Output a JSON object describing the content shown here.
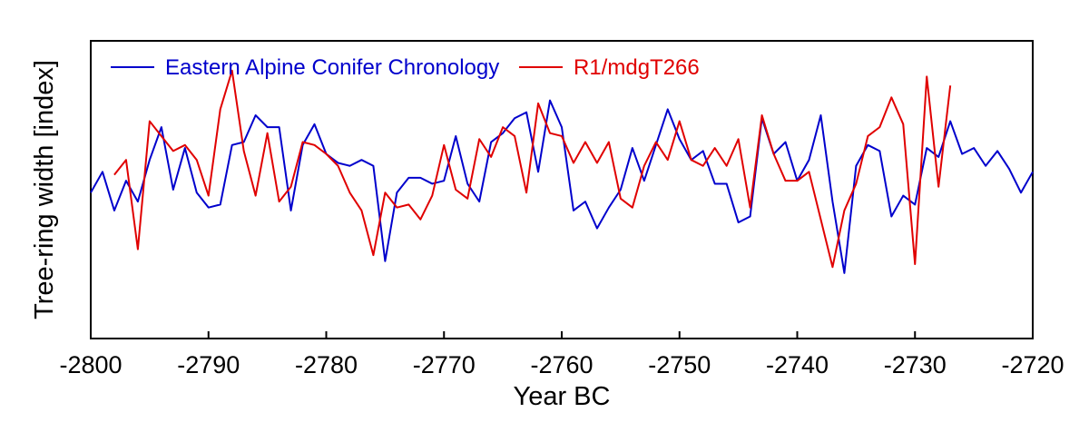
{
  "chart_data": {
    "type": "line",
    "xlabel": "Year BC",
    "ylabel": "Tree-ring width [index]",
    "xlim": [
      -2800,
      -2720
    ],
    "ylim": [
      0,
      10
    ],
    "xticks": [
      -2800,
      -2790,
      -2780,
      -2770,
      -2760,
      -2750,
      -2740,
      -2730,
      -2720
    ],
    "yticks": [],
    "grid": false,
    "legend": "top-left",
    "series": [
      {
        "name": "Eastern Alpine Conifer Chronology",
        "color": "#0000cc",
        "x": [
          -2800,
          -2799,
          -2798,
          -2797,
          -2796,
          -2795,
          -2794,
          -2793,
          -2792,
          -2791,
          -2790,
          -2789,
          -2788,
          -2787,
          -2786,
          -2785,
          -2784,
          -2783,
          -2782,
          -2781,
          -2780,
          -2779,
          -2778,
          -2777,
          -2776,
          -2775,
          -2774,
          -2773,
          -2772,
          -2771,
          -2770,
          -2769,
          -2768,
          -2767,
          -2766,
          -2765,
          -2764,
          -2763,
          -2762,
          -2761,
          -2760,
          -2759,
          -2758,
          -2757,
          -2756,
          -2755,
          -2754,
          -2753,
          -2752,
          -2751,
          -2750,
          -2749,
          -2748,
          -2747,
          -2746,
          -2745,
          -2744,
          -2743,
          -2742,
          -2741,
          -2740,
          -2739,
          -2738,
          -2737,
          -2736,
          -2735,
          -2734,
          -2733,
          -2732,
          -2731,
          -2730,
          -2729,
          -2728,
          -2727,
          -2726,
          -2725,
          -2724,
          -2723,
          -2722,
          -2721,
          -2720
        ],
        "values": [
          4.9,
          5.6,
          4.3,
          5.3,
          4.6,
          6.0,
          7.1,
          5.0,
          6.4,
          4.9,
          4.4,
          4.5,
          6.5,
          6.6,
          7.5,
          7.1,
          7.1,
          4.3,
          6.5,
          7.2,
          6.2,
          5.9,
          5.8,
          6.0,
          5.8,
          2.6,
          4.9,
          5.4,
          5.4,
          5.2,
          5.3,
          6.8,
          5.2,
          4.6,
          6.6,
          6.9,
          7.4,
          7.6,
          5.6,
          8.0,
          7.1,
          4.3,
          4.6,
          3.7,
          4.4,
          5.0,
          6.4,
          5.3,
          6.5,
          7.7,
          6.7,
          6.0,
          6.3,
          5.2,
          5.2,
          3.9,
          4.1,
          7.4,
          6.2,
          6.6,
          5.3,
          6.0,
          7.5,
          4.6,
          2.2,
          5.8,
          6.5,
          6.3,
          4.1,
          4.8,
          4.5,
          6.4,
          6.1,
          7.3,
          6.2,
          6.4,
          5.8,
          6.3,
          5.7,
          4.9,
          5.6
        ]
      },
      {
        "name": "R1/mdgT266",
        "color": "#e00000",
        "x": [
          -2798,
          -2797,
          -2796,
          -2795,
          -2794,
          -2793,
          -2792,
          -2791,
          -2790,
          -2789,
          -2788,
          -2787,
          -2786,
          -2785,
          -2784,
          -2783,
          -2782,
          -2781,
          -2780,
          -2779,
          -2778,
          -2777,
          -2776,
          -2775,
          -2774,
          -2773,
          -2772,
          -2771,
          -2770,
          -2769,
          -2768,
          -2767,
          -2766,
          -2765,
          -2764,
          -2763,
          -2762,
          -2761,
          -2760,
          -2759,
          -2758,
          -2757,
          -2756,
          -2755,
          -2754,
          -2753,
          -2752,
          -2751,
          -2750,
          -2749,
          -2748,
          -2747,
          -2746,
          -2745,
          -2744,
          -2743,
          -2742,
          -2741,
          -2740,
          -2739,
          -2738,
          -2737,
          -2736,
          -2735,
          -2734,
          -2733,
          -2732,
          -2731,
          -2730,
          -2729,
          -2728,
          -2727
        ],
        "values": [
          5.5,
          6.0,
          3.0,
          7.3,
          6.8,
          6.3,
          6.5,
          6.0,
          4.8,
          7.7,
          9.0,
          6.3,
          4.8,
          6.9,
          4.6,
          5.1,
          6.6,
          6.5,
          6.2,
          5.8,
          4.9,
          4.3,
          2.8,
          4.9,
          4.4,
          4.5,
          4.0,
          4.8,
          6.5,
          5.0,
          4.7,
          6.7,
          6.1,
          7.1,
          6.8,
          4.9,
          7.9,
          6.9,
          6.8,
          5.9,
          6.6,
          5.9,
          6.6,
          4.7,
          4.4,
          5.8,
          6.6,
          6.0,
          7.3,
          6.0,
          5.8,
          6.4,
          5.8,
          6.7,
          4.4,
          7.5,
          6.2,
          5.3,
          5.3,
          5.6,
          4.0,
          2.4,
          4.3,
          5.2,
          6.8,
          7.1,
          8.1,
          7.2,
          2.5,
          8.8,
          5.1,
          8.5
        ]
      }
    ]
  }
}
